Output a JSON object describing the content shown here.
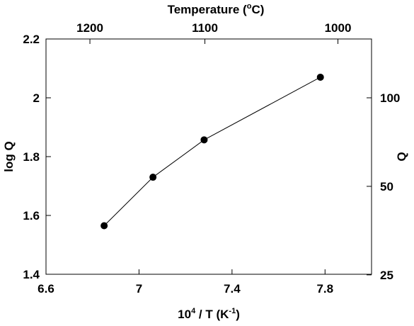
{
  "chart_data": {
    "type": "line",
    "xlabel": "10",
    "xlabel_sup": "4",
    "xlabel_rest": " / T  (K",
    "xlabel_sup2": "-1",
    "xlabel_end": ")",
    "ylabel": "log Q",
    "top_label_pre": "Temperature (",
    "top_label_sup": "o",
    "top_label_post": "C)",
    "right_label": "Q",
    "xlim": [
      6.6,
      8.0
    ],
    "ylim": [
      1.4,
      2.2
    ],
    "x_ticks": [
      6.6,
      7.0,
      7.4,
      7.8
    ],
    "x_tick_labels": [
      "6.6",
      "7",
      "7.4",
      "7.8"
    ],
    "y_ticks": [
      1.4,
      1.6,
      1.8,
      2.0,
      2.2
    ],
    "y_tick_labels": [
      "1.4",
      "1.6",
      "1.8",
      "2",
      "2.2"
    ],
    "top_ticks_celsius": [
      1200,
      1100,
      1000
    ],
    "top_tick_labels": [
      "1200",
      "1100",
      "1000"
    ],
    "right_ticks_q": [
      25,
      50,
      100
    ],
    "right_tick_labels": [
      "25",
      "50",
      "100"
    ],
    "series": [
      {
        "x": [
          6.85,
          7.06,
          7.28,
          7.78
        ],
        "y": [
          1.565,
          1.73,
          1.857,
          2.07
        ],
        "color": "#000000",
        "marker": "circle"
      }
    ],
    "grid": false
  }
}
